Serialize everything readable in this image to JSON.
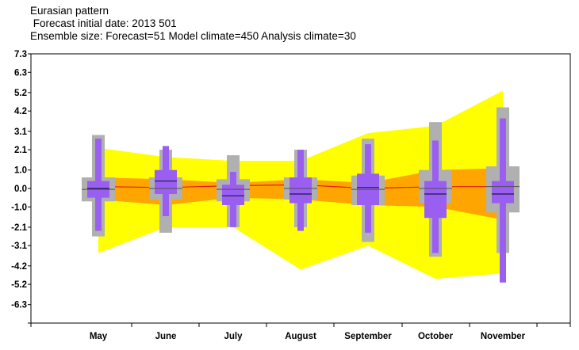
{
  "header": {
    "title": "Eurasian pattern",
    "subtitle_date": " Forecast initial date: 2013 501",
    "subtitle_ensemble": "Ensemble size: Forecast=51 Model climate=450 Analysis climate=30"
  },
  "chart_data": {
    "type": "box",
    "title": "Eurasian pattern",
    "categories": [
      "May",
      "June",
      "July",
      "August",
      "September",
      "October",
      "November"
    ],
    "y_ticks": [
      "7.3",
      "6.3",
      "5.2",
      "4.2",
      "3.1",
      "2.1",
      "1.0",
      "0.0",
      "-1.0",
      "-2.1",
      "-3.1",
      "-4.2",
      "-5.2",
      "-6.3"
    ],
    "ylim": [
      -7.3,
      7.3
    ],
    "colors": {
      "outer_band": "#ffff00",
      "inner_band": "#ffa500",
      "climate_line": "#e02000",
      "model_climate_box": "#b0b0b0",
      "forecast_box": "#9a5ff0",
      "median_line": "#1a1a40"
    },
    "analysis_climate": {
      "outer_upper": [
        2.2,
        1.7,
        1.5,
        1.5,
        3.0,
        3.4,
        5.3
      ],
      "outer_lower": [
        -3.5,
        -2.1,
        -2.1,
        -4.4,
        -3.1,
        -4.9,
        -4.6
      ],
      "inner_upper": [
        0.6,
        0.5,
        0.3,
        0.5,
        0.3,
        1.0,
        1.1
      ],
      "inner_lower": [
        -0.6,
        -0.9,
        -0.5,
        -0.6,
        -0.9,
        -1.0,
        -1.7
      ],
      "median": [
        0.1,
        0.05,
        0.15,
        0.2,
        0.0,
        0.1,
        0.1
      ]
    },
    "model_climate": {
      "whisker_high": [
        2.9,
        2.1,
        1.8,
        2.1,
        2.7,
        3.6,
        4.4
      ],
      "q75": [
        0.6,
        0.6,
        0.5,
        0.6,
        0.7,
        1.0,
        1.2
      ],
      "q25": [
        -0.7,
        -0.6,
        -0.7,
        -0.6,
        -0.9,
        -0.8,
        -1.3
      ],
      "whisker_low": [
        -2.6,
        -2.4,
        -2.1,
        -2.1,
        -2.9,
        -3.7,
        -3.5
      ],
      "median": [
        -0.05,
        0.0,
        -0.05,
        0.0,
        -0.05,
        0.0,
        0.1
      ]
    },
    "forecast": {
      "max": [
        2.7,
        2.3,
        0.9,
        2.1,
        2.4,
        2.6,
        3.8
      ],
      "q75": [
        0.4,
        1.0,
        0.2,
        0.6,
        0.8,
        0.4,
        0.4
      ],
      "q25": [
        -0.5,
        -0.3,
        -0.9,
        -0.8,
        -0.9,
        -1.6,
        -0.8
      ],
      "min": [
        -2.3,
        -1.5,
        -2.1,
        -2.3,
        -2.4,
        -3.5,
        -5.1
      ],
      "median": [
        0.0,
        0.4,
        -0.4,
        -0.3,
        0.05,
        -0.3,
        -0.3
      ]
    }
  }
}
